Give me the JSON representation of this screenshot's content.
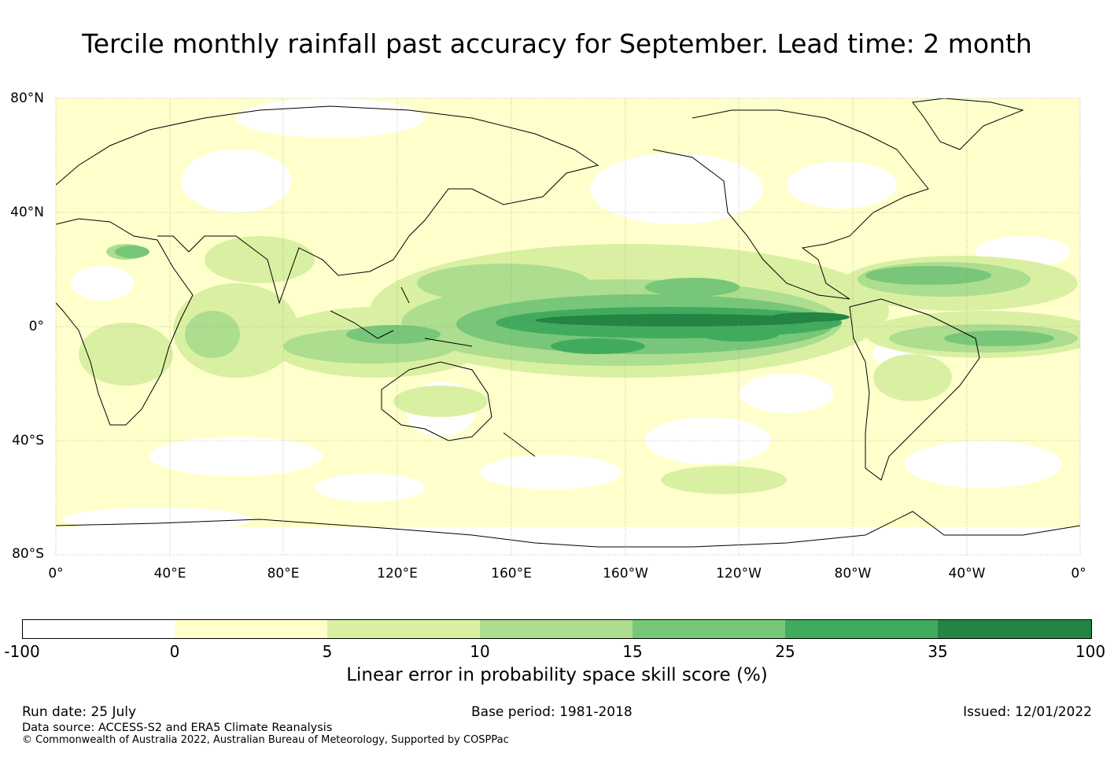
{
  "title": "Tercile monthly rainfall past accuracy for September. Lead time: 2 month",
  "map": {
    "lat_labels": [
      "80°N",
      "40°N",
      "0°",
      "40°S",
      "80°S"
    ],
    "lon_labels": [
      "0°",
      "40°E",
      "80°E",
      "120°E",
      "160°E",
      "160°W",
      "120°W",
      "80°W",
      "40°W",
      "0°"
    ],
    "colors": {
      "ocean_base": "#ffffcc",
      "coastline": "#000000",
      "gridline": "#8a8a8a"
    }
  },
  "colorbar": {
    "ticks": [
      "-100",
      "0",
      "5",
      "10",
      "15",
      "25",
      "35",
      "100"
    ],
    "colors": [
      "#ffffff",
      "#ffffcc",
      "#d9f0a3",
      "#addd8e",
      "#78c679",
      "#41ab5d",
      "#238443"
    ],
    "label": "Linear error in probability space skill score (%)"
  },
  "footer": {
    "run_date": "Run date: 25 July",
    "base_period": "Base period: 1981-2018",
    "issued": "Issued: 12/01/2022",
    "data_source": "Data source: ACCESS-S2 and ERA5 Climate Reanalysis",
    "copyright": "© Commonwealth of Australia 2022, Australian Bureau of Meteorology, Supported by COSPPac"
  }
}
